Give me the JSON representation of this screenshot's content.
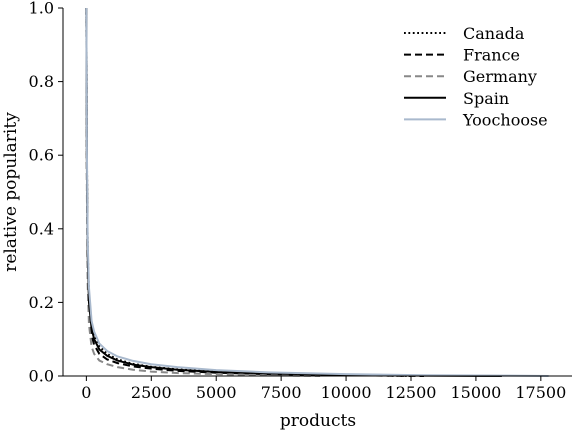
{
  "chart_data": {
    "type": "line",
    "xlabel": "products",
    "ylabel": "relative popularity",
    "xlim": [
      -900,
      18700
    ],
    "ylim": [
      0,
      1.0
    ],
    "xticks": [
      0,
      2500,
      5000,
      7500,
      10000,
      12500,
      15000,
      17500
    ],
    "yticks": [
      0.0,
      0.2,
      0.4,
      0.6,
      0.8,
      1.0
    ],
    "xtick_labels": [
      "0",
      "2500",
      "5000",
      "7500",
      "10000",
      "12500",
      "15000",
      "17500"
    ],
    "ytick_labels": [
      "0.0",
      "0.2",
      "0.4",
      "0.6",
      "0.8",
      "1.0"
    ],
    "grid": false,
    "legend_position": "top-right",
    "series": [
      {
        "name": "Canada",
        "color": "#000000",
        "style": "dotted",
        "x": [
          0,
          20,
          50,
          100,
          200,
          300,
          500,
          800,
          1200,
          1800,
          2500,
          3500,
          5000,
          7000,
          10000,
          12500
        ],
        "y": [
          1.0,
          0.6,
          0.35,
          0.22,
          0.14,
          0.11,
          0.08,
          0.06,
          0.045,
          0.033,
          0.025,
          0.018,
          0.012,
          0.007,
          0.003,
          0.0
        ]
      },
      {
        "name": "France",
        "color": "#000000",
        "style": "dashed",
        "x": [
          0,
          20,
          50,
          100,
          200,
          300,
          500,
          800,
          1200,
          1800,
          2500,
          3500,
          5000,
          7000,
          10000,
          13000
        ],
        "y": [
          1.0,
          0.55,
          0.3,
          0.18,
          0.11,
          0.085,
          0.06,
          0.045,
          0.035,
          0.026,
          0.02,
          0.014,
          0.009,
          0.005,
          0.002,
          0.0
        ]
      },
      {
        "name": "Germany",
        "color": "#888888",
        "style": "dashed",
        "x": [
          0,
          20,
          50,
          100,
          200,
          300,
          500,
          800,
          1200,
          1800,
          2500,
          3500,
          5000,
          7000,
          9000
        ],
        "y": [
          1.0,
          0.5,
          0.25,
          0.14,
          0.08,
          0.06,
          0.042,
          0.032,
          0.024,
          0.017,
          0.012,
          0.008,
          0.005,
          0.002,
          0.0
        ]
      },
      {
        "name": "Spain",
        "color": "#000000",
        "style": "solid",
        "x": [
          0,
          20,
          50,
          100,
          200,
          300,
          500,
          800,
          1200,
          1800,
          2500,
          3500,
          5000,
          7000,
          10000,
          13000,
          16000
        ],
        "y": [
          1.0,
          0.58,
          0.33,
          0.2,
          0.13,
          0.1,
          0.072,
          0.055,
          0.042,
          0.031,
          0.024,
          0.017,
          0.011,
          0.007,
          0.003,
          0.001,
          0.0
        ]
      },
      {
        "name": "Yoochoose",
        "color": "#a9b9cd",
        "style": "solid",
        "x": [
          0,
          20,
          50,
          100,
          200,
          300,
          500,
          800,
          1200,
          1800,
          2500,
          3500,
          5000,
          7000,
          10000,
          13000,
          16000,
          17800
        ],
        "y": [
          1.0,
          0.62,
          0.37,
          0.24,
          0.15,
          0.12,
          0.088,
          0.068,
          0.053,
          0.041,
          0.032,
          0.024,
          0.016,
          0.01,
          0.005,
          0.002,
          0.001,
          0.0
        ]
      }
    ]
  }
}
